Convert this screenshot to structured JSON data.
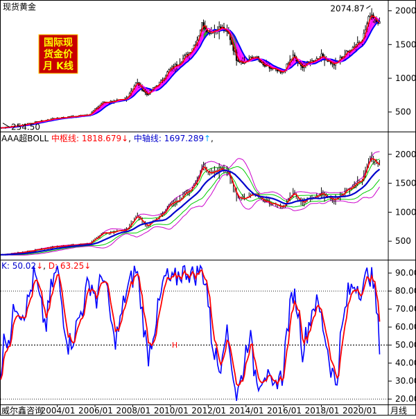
{
  "title": "现货黄金",
  "watermark": {
    "lines": [
      "国际现",
      "货金价",
      "月 K线"
    ],
    "bg": "#c80000",
    "fg": "#ffff00"
  },
  "footer": {
    "brand": "威尔鑫咨询",
    "period": "月线"
  },
  "colors": {
    "up": "#000000",
    "down": "#000000",
    "ma_fast": "#ff0000",
    "ma_mid": "#ff00ff",
    "ma_slow": "#0000ff",
    "ma_fill_up": "#ff00ff",
    "ma_fill_dn": "#00c000",
    "boll_mid": "#0000cc",
    "boll_inner": "#00cc00",
    "boll_outer": "#cc00cc",
    "boll_price": "#ff0000",
    "k": "#0000ff",
    "d": "#ff0000",
    "grid": "#000000",
    "ref": "#000000",
    "label_k": "#0000cc",
    "label_d": "#ff0000",
    "axis_text": "#000000"
  },
  "panel1": {
    "max_label": "2074.87",
    "min_label": "254.50",
    "y_ticks": [
      500,
      1000,
      1500,
      2000
    ],
    "y_range": [
      210,
      2150
    ]
  },
  "panel2": {
    "name": "AAA超BOLL",
    "upper_label": "中枢线:",
    "upper_value": "1818.679",
    "upper_arrow": "↓",
    "mid_label": "中轴线:",
    "mid_value": "1697.289",
    "mid_arrow": "↑",
    "trail": ",",
    "y_ticks": [
      500,
      1000,
      1500,
      2000
    ],
    "y_range": [
      180,
      2380
    ]
  },
  "panel3": {
    "k_label": "K: 50.02",
    "k_arrow": "↓",
    "d_label": "D: 63.25",
    "d_arrow": "↓",
    "h_marker": "H",
    "y_ticks": [
      20,
      30,
      40,
      50,
      60,
      70,
      80,
      90
    ],
    "tick_labels": [
      "20.00",
      "30.00",
      "40.00",
      "50.00",
      "60.00",
      "70.00",
      "80.00",
      "90.00"
    ],
    "dotted_levels": [
      20,
      80
    ],
    "ref_level": 50,
    "y_range": [
      17,
      97
    ]
  },
  "x_axis": {
    "labels": [
      "2004/01",
      "2006/01",
      "2008/01",
      "2010/01",
      "2012/01",
      "2014/01",
      "2016/01",
      "2018/01",
      "2020/01"
    ],
    "years": [
      2004,
      2006,
      2008,
      2010,
      2012,
      2014,
      2016,
      2018,
      2020
    ],
    "range": [
      2001.0,
      2021.25
    ]
  },
  "chart_data": {
    "type": "line",
    "title": "现货黄金",
    "x_unit": "year",
    "price_anchors": [
      [
        2001.0,
        265
      ],
      [
        2002.0,
        300
      ],
      [
        2003.0,
        355
      ],
      [
        2004.0,
        410
      ],
      [
        2005.0,
        435
      ],
      [
        2005.75,
        470
      ],
      [
        2006.4,
        640
      ],
      [
        2007.0,
        660
      ],
      [
        2007.6,
        680
      ],
      [
        2008.2,
        940
      ],
      [
        2008.75,
        760
      ],
      [
        2009.5,
        950
      ],
      [
        2009.9,
        1110
      ],
      [
        2010.5,
        1240
      ],
      [
        2011.0,
        1380
      ],
      [
        2011.4,
        1560
      ],
      [
        2011.7,
        1830
      ],
      [
        2012.0,
        1690
      ],
      [
        2012.7,
        1750
      ],
      [
        2013.1,
        1650
      ],
      [
        2013.5,
        1290
      ],
      [
        2013.9,
        1240
      ],
      [
        2014.5,
        1320
      ],
      [
        2014.9,
        1190
      ],
      [
        2015.5,
        1130
      ],
      [
        2015.9,
        1070
      ],
      [
        2016.5,
        1330
      ],
      [
        2016.9,
        1170
      ],
      [
        2017.5,
        1250
      ],
      [
        2018.0,
        1330
      ],
      [
        2018.7,
        1200
      ],
      [
        2019.0,
        1290
      ],
      [
        2019.5,
        1420
      ],
      [
        2019.9,
        1520
      ],
      [
        2020.2,
        1600
      ],
      [
        2020.6,
        1970
      ],
      [
        2020.9,
        1880
      ],
      [
        2021.1,
        1815
      ]
    ],
    "kd_anchors": [
      [
        2001.0,
        34
      ],
      [
        2001.2,
        55
      ],
      [
        2001.5,
        55
      ],
      [
        2001.8,
        75
      ],
      [
        2002.1,
        68
      ],
      [
        2002.4,
        72
      ],
      [
        2002.8,
        90
      ],
      [
        2003.1,
        72
      ],
      [
        2003.4,
        60
      ],
      [
        2003.7,
        83
      ],
      [
        2004.0,
        92
      ],
      [
        2004.3,
        68
      ],
      [
        2004.6,
        50
      ],
      [
        2004.9,
        56
      ],
      [
        2005.3,
        70
      ],
      [
        2005.6,
        82
      ],
      [
        2005.8,
        85
      ],
      [
        2006.1,
        74
      ],
      [
        2006.4,
        92
      ],
      [
        2006.7,
        74
      ],
      [
        2007.0,
        52
      ],
      [
        2007.3,
        60
      ],
      [
        2007.6,
        78
      ],
      [
        2007.9,
        85
      ],
      [
        2008.2,
        93
      ],
      [
        2008.5,
        68
      ],
      [
        2008.8,
        43
      ],
      [
        2009.1,
        58
      ],
      [
        2009.4,
        72
      ],
      [
        2009.7,
        88
      ],
      [
        2010.1,
        84
      ],
      [
        2010.5,
        90
      ],
      [
        2010.9,
        92
      ],
      [
        2011.2,
        88
      ],
      [
        2011.6,
        93
      ],
      [
        2011.9,
        85
      ],
      [
        2012.2,
        52
      ],
      [
        2012.6,
        36
      ],
      [
        2012.9,
        60
      ],
      [
        2013.2,
        44
      ],
      [
        2013.5,
        21
      ],
      [
        2013.8,
        33
      ],
      [
        2014.0,
        47
      ],
      [
        2014.2,
        58
      ],
      [
        2014.4,
        38
      ],
      [
        2014.7,
        30
      ],
      [
        2015.0,
        36
      ],
      [
        2015.3,
        26
      ],
      [
        2015.5,
        23
      ],
      [
        2015.7,
        34
      ],
      [
        2015.9,
        30
      ],
      [
        2016.2,
        60
      ],
      [
        2016.5,
        80
      ],
      [
        2016.8,
        68
      ],
      [
        2017.0,
        47
      ],
      [
        2017.3,
        60
      ],
      [
        2017.6,
        74
      ],
      [
        2017.9,
        70
      ],
      [
        2018.2,
        55
      ],
      [
        2018.5,
        38
      ],
      [
        2018.8,
        27
      ],
      [
        2019.0,
        52
      ],
      [
        2019.4,
        78
      ],
      [
        2019.8,
        85
      ],
      [
        2020.2,
        80
      ],
      [
        2020.5,
        92
      ],
      [
        2020.8,
        82
      ],
      [
        2021.1,
        50
      ]
    ],
    "last_values": {
      "high": 2074.87,
      "low": 254.5,
      "boll_upper": 1818.679,
      "boll_mid": 1697.289,
      "k": 50.02,
      "d": 63.25
    },
    "grid": false,
    "legend": "top-left"
  }
}
